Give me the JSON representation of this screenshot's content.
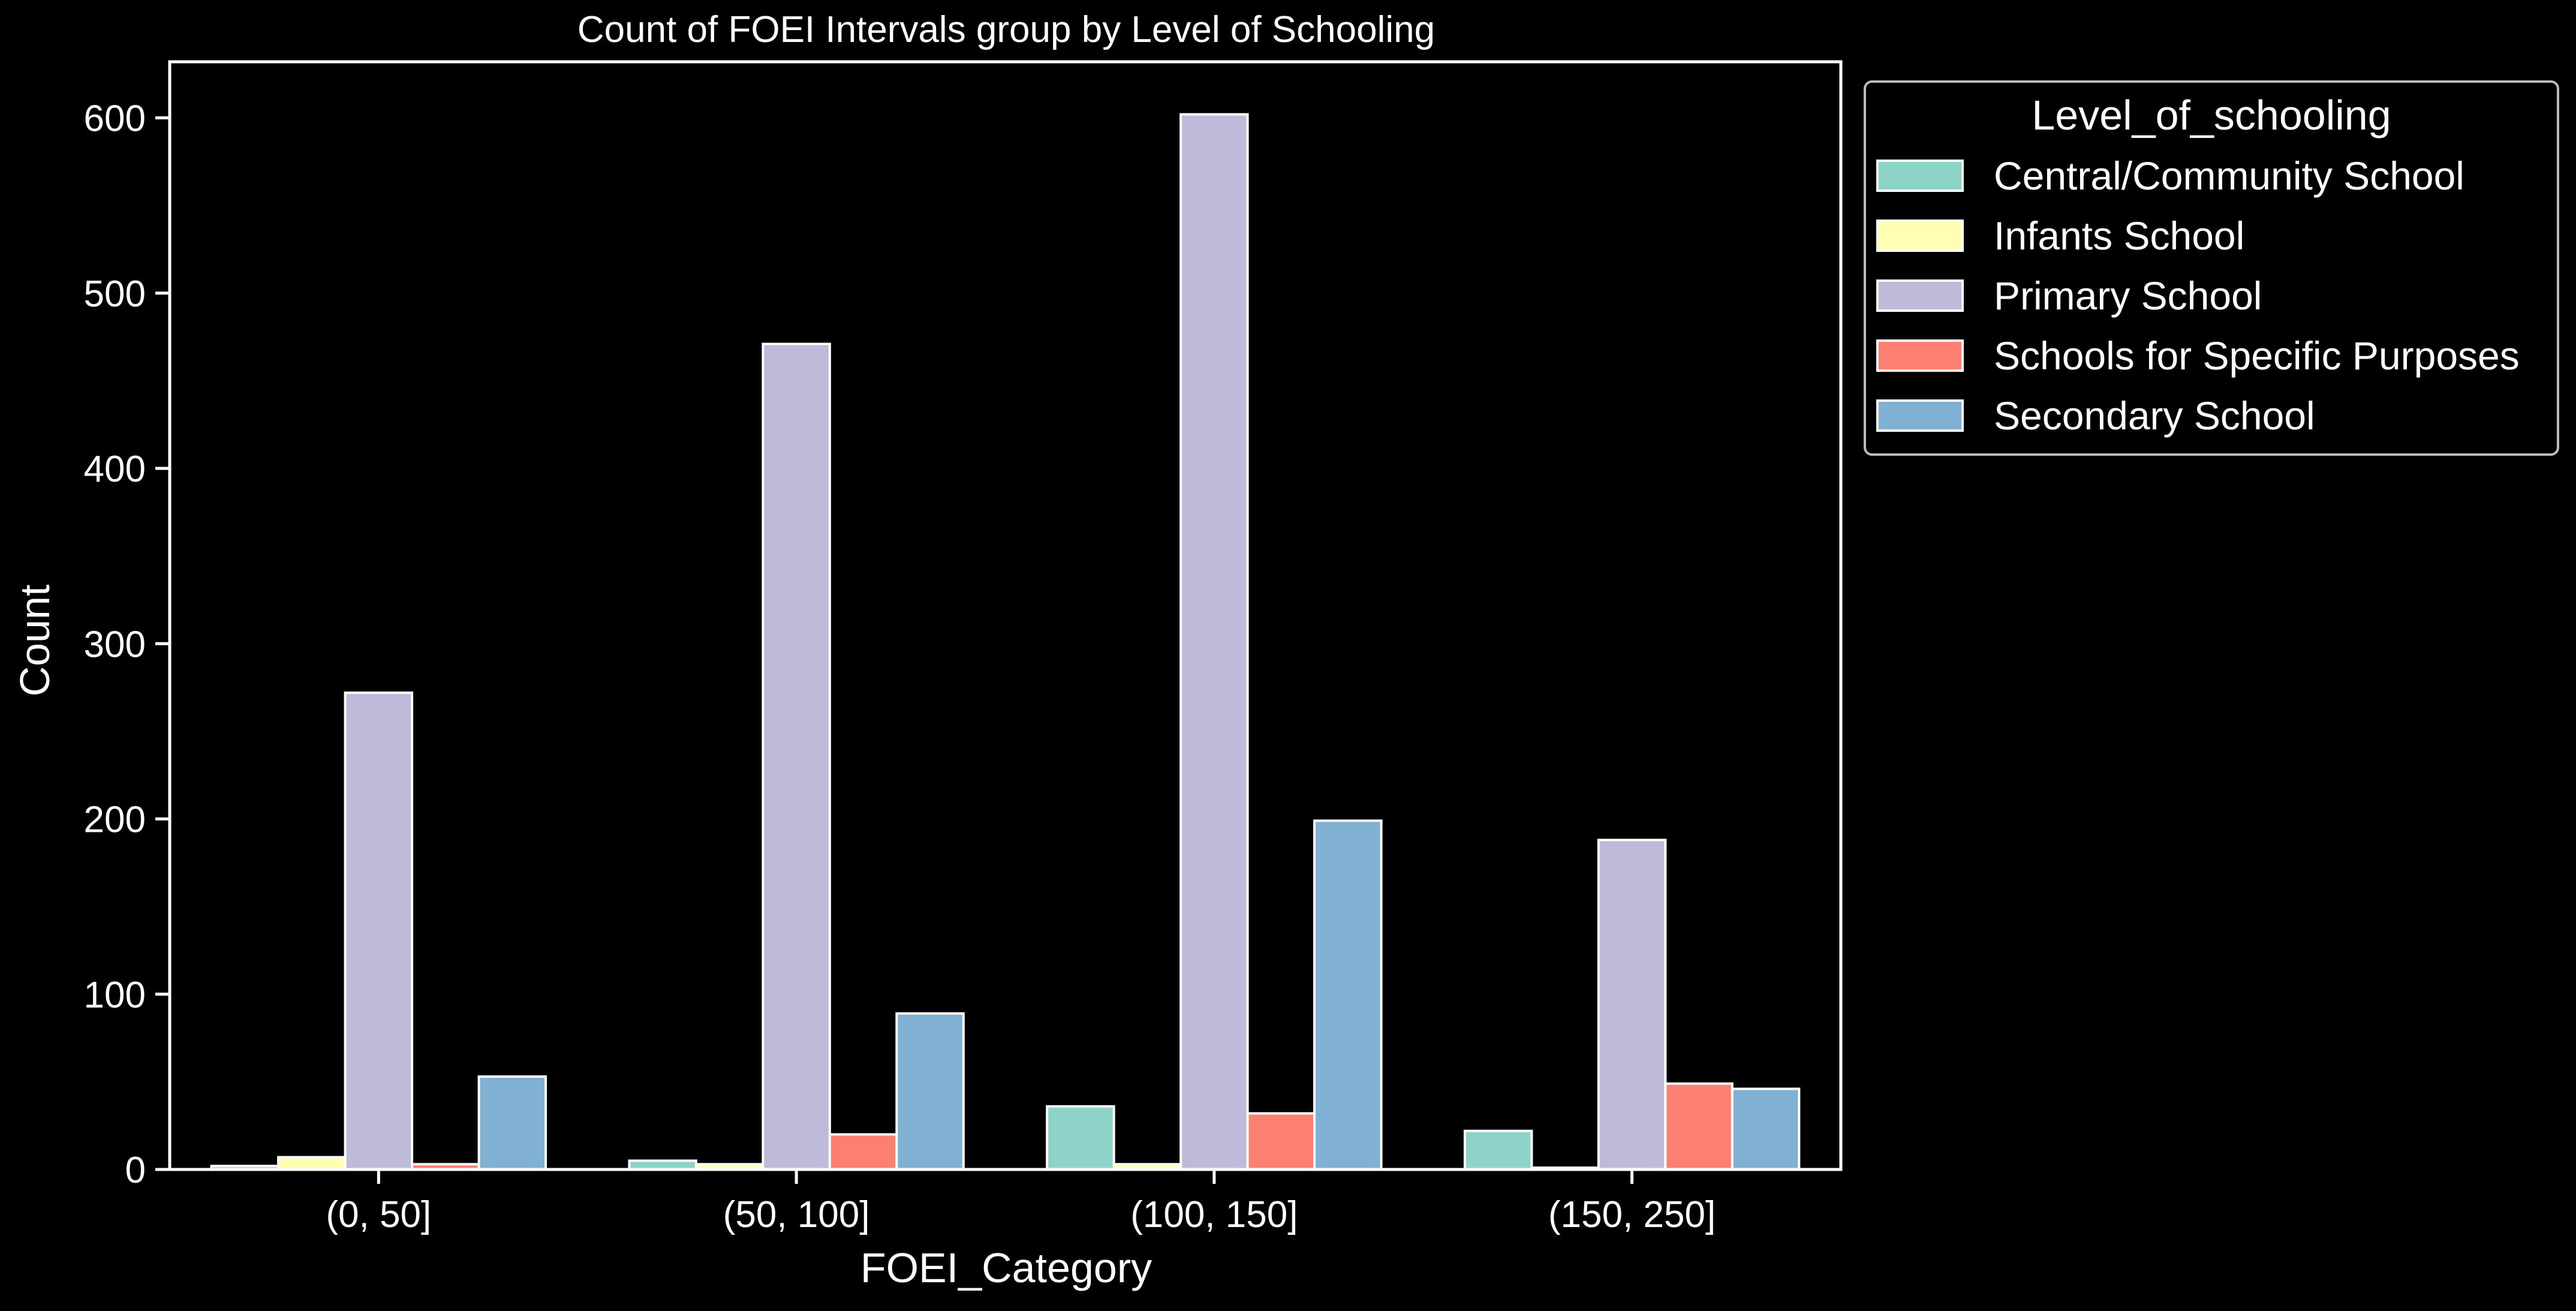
{
  "chart_data": {
    "type": "bar",
    "title": "Count of FOEI Intervals group by Level of Schooling",
    "xlabel": "FOEI_Category",
    "ylabel": "Count",
    "categories": [
      "(0, 50]",
      "(50, 100]",
      "(100, 150]",
      "(150, 250]"
    ],
    "ylim": [
      0,
      632
    ],
    "yticks": [
      0,
      100,
      200,
      300,
      400,
      500,
      600
    ],
    "grid": false,
    "legend": {
      "title": "Level_of_schooling",
      "placement": "outside upper-right"
    },
    "series": [
      {
        "name": "Central/Community School",
        "color": "#8dd3c7",
        "values": [
          2,
          5,
          36,
          22
        ]
      },
      {
        "name": "Infants School",
        "color": "#ffffb3",
        "values": [
          7,
          3,
          3,
          1
        ]
      },
      {
        "name": "Primary School",
        "color": "#bebada",
        "values": [
          272,
          471,
          602,
          188
        ]
      },
      {
        "name": "Schools for Specific Purposes",
        "color": "#fb8072",
        "values": [
          3,
          20,
          32,
          49
        ]
      },
      {
        "name": "Secondary School",
        "color": "#80b1d3",
        "values": [
          53,
          89,
          199,
          46
        ]
      }
    ]
  }
}
